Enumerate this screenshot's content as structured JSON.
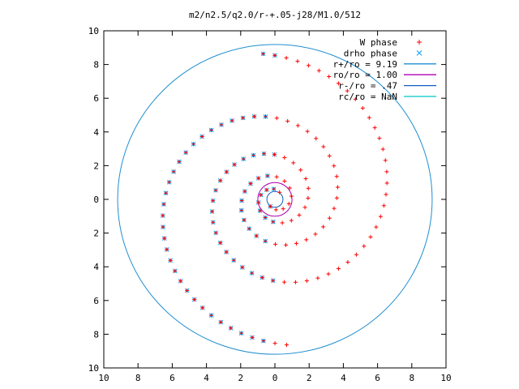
{
  "chart_data": {
    "type": "scatter",
    "title": "m2/n2.5/q2.0/r-+.05-j28/M1.0/512",
    "xlim": [
      -10,
      10
    ],
    "ylim": [
      -10,
      10
    ],
    "x_tick_values": [
      -10,
      -8,
      -6,
      -4,
      -2,
      0,
      2,
      4,
      6,
      8,
      10
    ],
    "x_tick_labels": [
      "10",
      "8",
      "6",
      "4",
      "2",
      "0",
      "2",
      "4",
      "6",
      "8",
      "10"
    ],
    "y_tick_values": [
      10,
      8,
      6,
      4,
      2,
      0,
      -2,
      -4,
      -6,
      -8,
      -10
    ],
    "y_tick_labels": [
      "10",
      "8",
      "6",
      "4",
      "2",
      "0",
      "2",
      "4",
      "6",
      "8",
      "10"
    ],
    "grid": false,
    "legend_position": "top-right",
    "series": [
      {
        "name": "W phase",
        "marker": "plus",
        "color": "#ff0000"
      },
      {
        "name": "drho phase",
        "marker": "cross",
        "color": "#00a0ff"
      }
    ],
    "circles": [
      {
        "name": "r+/ro = 9.19",
        "radius": 9.19,
        "color": "#1f8fd0"
      },
      {
        "name": "ro/ro = 1.00",
        "radius": 1.0,
        "color": "#b000b0"
      },
      {
        "name": "r-/ro = .47",
        "radius": 0.47,
        "color": "#1060c0"
      },
      {
        "name": "rc/ro = NaN",
        "radius": null,
        "color": "#00c8c8"
      }
    ],
    "pattern": {
      "description": "two-armed spiral with markers on interleaved arms",
      "arms": 2,
      "r_min": 0.5,
      "r_max": 8.7,
      "spiral_tightness": 1.9,
      "radial_step": 0.12
    }
  }
}
